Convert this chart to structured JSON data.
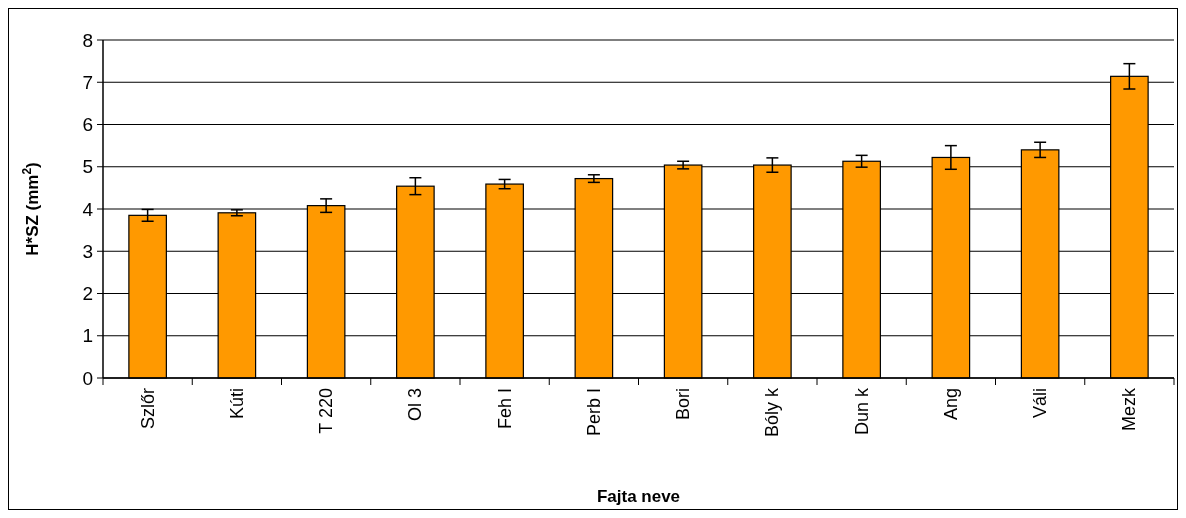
{
  "chart_data": {
    "type": "bar",
    "xlabel": "Fajta neve",
    "ylabel": "H*SZ (mm$^{2}$)",
    "categories": [
      "Szlőr",
      "Kúti",
      "T 220",
      "Ol 3",
      "Feh I",
      "Perb I",
      "Bori",
      "Bóly k",
      "Dun k",
      "Ang",
      "Váli",
      "Mezk"
    ],
    "values": [
      3.85,
      3.91,
      4.08,
      4.54,
      4.59,
      4.72,
      5.04,
      5.04,
      5.13,
      5.22,
      5.4,
      7.14
    ],
    "errors": [
      0.14,
      0.07,
      0.16,
      0.2,
      0.11,
      0.09,
      0.09,
      0.17,
      0.14,
      0.28,
      0.18,
      0.3
    ],
    "color": "#ff9900",
    "ylim": [
      0,
      8
    ],
    "yticks": [
      0,
      1,
      2,
      3,
      4,
      5,
      6,
      7,
      8
    ],
    "grid": "y"
  }
}
